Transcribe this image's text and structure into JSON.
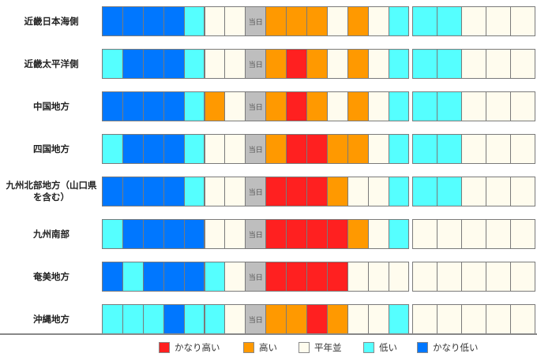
{
  "colors": {
    "very_high": "#ff2020",
    "high": "#ff9900",
    "normal": "#fffcee",
    "low": "#55ffff",
    "very_low": "#0077ff",
    "today": "#bebebe"
  },
  "today_label": "当日",
  "regions": [
    {
      "name": "近畿日本海側",
      "cells": [
        "very_low",
        "very_low",
        "very_low",
        "very_low",
        "low",
        "normal",
        "normal",
        "today",
        "high",
        "high",
        "high",
        "normal",
        "high",
        "normal",
        "low",
        "low",
        "low",
        "normal",
        "normal",
        "normal"
      ]
    },
    {
      "name": "近畿太平洋側",
      "cells": [
        "low",
        "very_low",
        "very_low",
        "very_low",
        "low",
        "normal",
        "normal",
        "today",
        "high",
        "very_high",
        "high",
        "normal",
        "high",
        "normal",
        "low",
        "low",
        "low",
        "normal",
        "normal",
        "normal"
      ]
    },
    {
      "name": "中国地方",
      "cells": [
        "very_low",
        "very_low",
        "very_low",
        "very_low",
        "low",
        "high",
        "normal",
        "today",
        "high",
        "very_high",
        "high",
        "normal",
        "high",
        "normal",
        "low",
        "low",
        "low",
        "normal",
        "normal",
        "normal"
      ]
    },
    {
      "name": "四国地方",
      "cells": [
        "low",
        "very_low",
        "very_low",
        "very_low",
        "low",
        "normal",
        "normal",
        "today",
        "high",
        "very_high",
        "very_high",
        "high",
        "high",
        "normal",
        "low",
        "low",
        "low",
        "normal",
        "normal",
        "normal"
      ]
    },
    {
      "name": "九州北部地方（山口県を含む）",
      "cells": [
        "very_low",
        "very_low",
        "very_low",
        "very_low",
        "low",
        "normal",
        "normal",
        "today",
        "very_high",
        "very_high",
        "very_high",
        "high",
        "normal",
        "normal",
        "low",
        "low",
        "low",
        "normal",
        "normal",
        "normal"
      ]
    },
    {
      "name": "九州南部",
      "cells": [
        "low",
        "very_low",
        "very_low",
        "very_low",
        "very_low",
        "normal",
        "normal",
        "today",
        "very_high",
        "very_high",
        "very_high",
        "very_high",
        "high",
        "normal",
        "low",
        "normal",
        "normal",
        "normal",
        "normal",
        "normal"
      ]
    },
    {
      "name": "奄美地方",
      "cells": [
        "very_low",
        "low",
        "very_low",
        "very_low",
        "very_low",
        "low",
        "normal",
        "today",
        "very_high",
        "very_high",
        "very_high",
        "very_high",
        "normal",
        "normal",
        "normal",
        "normal",
        "normal",
        "normal",
        "normal",
        "normal"
      ]
    },
    {
      "name": "沖縄地方",
      "cells": [
        "low",
        "low",
        "low",
        "very_low",
        "low",
        "low",
        "normal",
        "today",
        "high",
        "high",
        "very_high",
        "high",
        "normal",
        "normal",
        "low",
        "normal",
        "normal",
        "normal",
        "normal",
        "normal"
      ]
    }
  ],
  "legend": [
    {
      "label": "かなり高い",
      "level": "very_high"
    },
    {
      "label": "高い",
      "level": "high"
    },
    {
      "label": "平年並",
      "level": "normal"
    },
    {
      "label": "低い",
      "level": "low"
    },
    {
      "label": "かなり低い",
      "level": "very_low"
    }
  ]
}
